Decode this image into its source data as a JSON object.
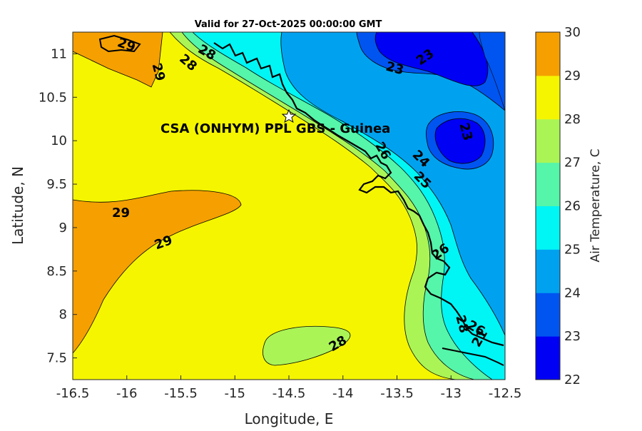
{
  "header": {
    "title": "Valid for 27-Oct-2025 00:00:00 GMT"
  },
  "axes": {
    "xlabel": "Longitude, E",
    "ylabel": "Latitude, N",
    "x_ticks": [
      "-16.5",
      "-16",
      "-15.5",
      "-15",
      "-14.5",
      "-14",
      "-13.5",
      "-13",
      "-12.5"
    ],
    "y_ticks": [
      "7.5",
      "8",
      "8.5",
      "9",
      "9.5",
      "10",
      "10.5",
      "11"
    ],
    "x_range": [
      -16.5,
      -12.5
    ],
    "y_range": [
      7.25,
      11.25
    ]
  },
  "colorbar": {
    "label": "Air Temperature, C",
    "ticks": [
      "22",
      "23",
      "24",
      "25",
      "26",
      "27",
      "28",
      "29",
      "30"
    ],
    "colors": [
      "#0000f5",
      "#0055f0",
      "#00a2f0",
      "#00f5f5",
      "#55f5aa",
      "#aaf555",
      "#f5f500",
      "#f5a000",
      "#f55500"
    ]
  },
  "map": {
    "site_marker": {
      "label": "CSA (ONHYM) PPL GBS  - Guinea",
      "lon": -14.5,
      "lat": 10.28
    },
    "contour_labels": [
      "29",
      "28",
      "29",
      "29",
      "29",
      "28",
      "28",
      "23",
      "23",
      "23",
      "24",
      "25",
      "26",
      "26",
      "26",
      "28",
      "21"
    ]
  }
}
